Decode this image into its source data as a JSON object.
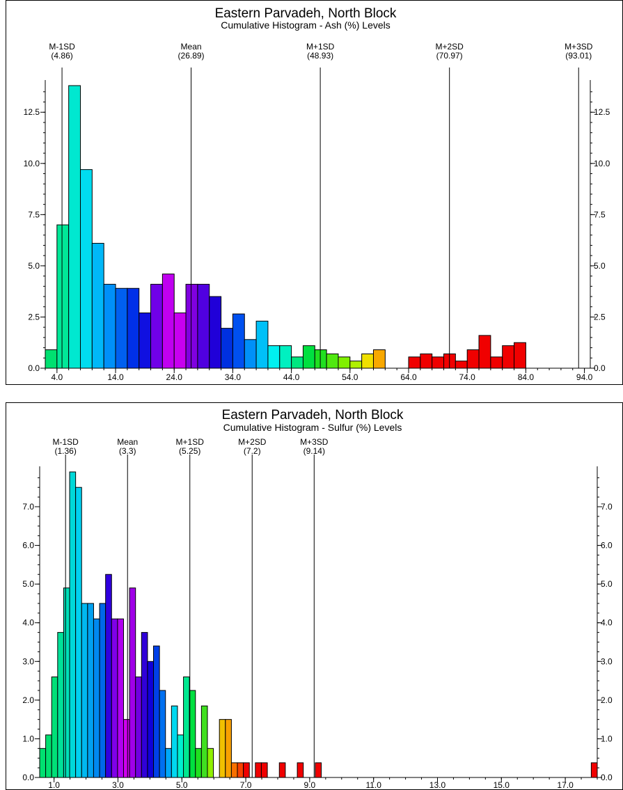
{
  "chart_data": [
    {
      "type": "bar",
      "title": "Eastern Parvadeh, North Block",
      "subtitle": "Cumulative Histogram - Ash (%) Levels",
      "xlabel": "",
      "ylabel": "",
      "xlim": [
        2.0,
        95.0
      ],
      "ylim": [
        0,
        13.8
      ],
      "xticks": [
        "4.0",
        "14.0",
        "24.0",
        "34.0",
        "44.0",
        "54.0",
        "64.0",
        "74.0",
        "84.0",
        "94.0"
      ],
      "yticks": [
        "0.0",
        "2.5",
        "5.0",
        "7.5",
        "10.0",
        "12.5"
      ],
      "grid": false,
      "bin_width": 2.0,
      "bins": [
        {
          "x0": 2.0,
          "value": 0.9,
          "color": "#00e070"
        },
        {
          "x0": 4.0,
          "value": 7.0,
          "color": "#00e898"
        },
        {
          "x0": 6.0,
          "value": 13.8,
          "color": "#00e8d0"
        },
        {
          "x0": 8.0,
          "value": 9.7,
          "color": "#00dcf0"
        },
        {
          "x0": 10.0,
          "value": 6.1,
          "color": "#00b8f8"
        },
        {
          "x0": 12.0,
          "value": 4.1,
          "color": "#0090f8"
        },
        {
          "x0": 14.0,
          "value": 3.9,
          "color": "#0060f0"
        },
        {
          "x0": 16.0,
          "value": 3.9,
          "color": "#0030e8"
        },
        {
          "x0": 18.0,
          "value": 2.7,
          "color": "#1010e0"
        },
        {
          "x0": 20.0,
          "value": 4.1,
          "color": "#7000e8"
        },
        {
          "x0": 22.0,
          "value": 4.6,
          "color": "#c000f0"
        },
        {
          "x0": 24.0,
          "value": 2.7,
          "color": "#c800f0"
        },
        {
          "x0": 26.0,
          "value": 4.1,
          "color": "#8000e0"
        },
        {
          "x0": 28.0,
          "value": 4.1,
          "color": "#5000e0"
        },
        {
          "x0": 30.0,
          "value": 3.5,
          "color": "#2000d8"
        },
        {
          "x0": 32.0,
          "value": 1.95,
          "color": "#0030e0"
        },
        {
          "x0": 34.0,
          "value": 2.65,
          "color": "#0050f0"
        },
        {
          "x0": 36.0,
          "value": 1.4,
          "color": "#0090f8"
        },
        {
          "x0": 38.0,
          "value": 2.3,
          "color": "#00c0f8"
        },
        {
          "x0": 40.0,
          "value": 1.1,
          "color": "#00f0f0"
        },
        {
          "x0": 42.0,
          "value": 1.1,
          "color": "#00f0c0"
        },
        {
          "x0": 44.0,
          "value": 0.55,
          "color": "#00e880"
        },
        {
          "x0": 46.0,
          "value": 1.1,
          "color": "#00e040"
        },
        {
          "x0": 48.0,
          "value": 0.9,
          "color": "#20e020"
        },
        {
          "x0": 50.0,
          "value": 0.7,
          "color": "#50e810"
        },
        {
          "x0": 52.0,
          "value": 0.55,
          "color": "#80f000"
        },
        {
          "x0": 54.0,
          "value": 0.35,
          "color": "#b0f000"
        },
        {
          "x0": 56.0,
          "value": 0.7,
          "color": "#f0e000"
        },
        {
          "x0": 58.0,
          "value": 0.9,
          "color": "#f8a800"
        },
        {
          "x0": 64.0,
          "value": 0.55,
          "color": "#f00000"
        },
        {
          "x0": 66.0,
          "value": 0.7,
          "color": "#f00000"
        },
        {
          "x0": 68.0,
          "value": 0.55,
          "color": "#f00000"
        },
        {
          "x0": 70.0,
          "value": 0.7,
          "color": "#f00000"
        },
        {
          "x0": 72.0,
          "value": 0.35,
          "color": "#f00000"
        },
        {
          "x0": 74.0,
          "value": 0.9,
          "color": "#f00000"
        },
        {
          "x0": 76.0,
          "value": 1.6,
          "color": "#f00000"
        },
        {
          "x0": 78.0,
          "value": 0.55,
          "color": "#f00000"
        },
        {
          "x0": 80.0,
          "value": 1.1,
          "color": "#f00000"
        },
        {
          "x0": 82.0,
          "value": 1.25,
          "color": "#f00000"
        }
      ],
      "reference_lines": [
        {
          "name": "M-1SD",
          "label": "(4.86)",
          "x": 4.86
        },
        {
          "name": "Mean",
          "label": "(26.89)",
          "x": 26.89
        },
        {
          "name": "M+1SD",
          "label": "(48.93)",
          "x": 48.93
        },
        {
          "name": "M+2SD",
          "label": "(70.97)",
          "x": 70.97
        },
        {
          "name": "M+3SD",
          "label": "(93.01)",
          "x": 93.01
        }
      ]
    },
    {
      "type": "bar",
      "title": "Eastern Parvadeh, North Block",
      "subtitle": "Cumulative Histogram - Sulfur (%) Levels",
      "xlabel": "",
      "ylabel": "",
      "xlim": [
        0.55,
        18.0
      ],
      "ylim": [
        0,
        7.9
      ],
      "xticks": [
        "1.0",
        "3.0",
        "5.0",
        "7.0",
        "9.0",
        "11.0",
        "13.0",
        "15.0",
        "17.0"
      ],
      "yticks": [
        "0.0",
        "1.0",
        "2.0",
        "3.0",
        "4.0",
        "5.0",
        "6.0",
        "7.0"
      ],
      "grid": false,
      "bin_width": 0.1875,
      "bins": [
        {
          "x0": 0.55,
          "value": 0.75,
          "color": "#00e070"
        },
        {
          "x0": 0.7375,
          "value": 1.1,
          "color": "#00e070"
        },
        {
          "x0": 0.925,
          "value": 2.6,
          "color": "#00e078"
        },
        {
          "x0": 1.1125,
          "value": 3.75,
          "color": "#00e098"
        },
        {
          "x0": 1.3,
          "value": 4.9,
          "color": "#00e0b8"
        },
        {
          "x0": 1.4875,
          "value": 7.9,
          "color": "#00d8d8"
        },
        {
          "x0": 1.675,
          "value": 7.5,
          "color": "#00d0f0"
        },
        {
          "x0": 1.8625,
          "value": 4.5,
          "color": "#00b8f0"
        },
        {
          "x0": 2.05,
          "value": 4.5,
          "color": "#00a0f0"
        },
        {
          "x0": 2.2375,
          "value": 4.1,
          "color": "#0088f0"
        },
        {
          "x0": 2.425,
          "value": 4.5,
          "color": "#0068e8"
        },
        {
          "x0": 2.6125,
          "value": 5.25,
          "color": "#3000e0"
        },
        {
          "x0": 2.8,
          "value": 4.1,
          "color": "#8000e8"
        },
        {
          "x0": 2.9875,
          "value": 4.1,
          "color": "#b000f0"
        },
        {
          "x0": 3.175,
          "value": 1.5,
          "color": "#d000f0"
        },
        {
          "x0": 3.3625,
          "value": 4.9,
          "color": "#a000e8"
        },
        {
          "x0": 3.55,
          "value": 2.6,
          "color": "#7000e0"
        },
        {
          "x0": 3.7375,
          "value": 3.75,
          "color": "#3000d8"
        },
        {
          "x0": 3.925,
          "value": 3.0,
          "color": "#1000d8"
        },
        {
          "x0": 4.1125,
          "value": 3.4,
          "color": "#0040e8"
        },
        {
          "x0": 4.3,
          "value": 2.25,
          "color": "#0070f0"
        },
        {
          "x0": 4.4875,
          "value": 0.75,
          "color": "#00a8f8"
        },
        {
          "x0": 4.675,
          "value": 1.85,
          "color": "#00d8f0"
        },
        {
          "x0": 4.8625,
          "value": 1.1,
          "color": "#00f0d0"
        },
        {
          "x0": 5.05,
          "value": 2.6,
          "color": "#00e890"
        },
        {
          "x0": 5.2375,
          "value": 2.25,
          "color": "#00e040"
        },
        {
          "x0": 5.425,
          "value": 0.75,
          "color": "#20e020"
        },
        {
          "x0": 5.6125,
          "value": 1.85,
          "color": "#40e020"
        },
        {
          "x0": 5.8,
          "value": 0.75,
          "color": "#90f000"
        },
        {
          "x0": 6.175,
          "value": 1.5,
          "color": "#f0c000"
        },
        {
          "x0": 6.3625,
          "value": 1.5,
          "color": "#f8a000"
        },
        {
          "x0": 6.55,
          "value": 0.38,
          "color": "#f87000"
        },
        {
          "x0": 6.7375,
          "value": 0.38,
          "color": "#f84000"
        },
        {
          "x0": 6.925,
          "value": 0.38,
          "color": "#f00000"
        },
        {
          "x0": 7.3,
          "value": 0.38,
          "color": "#f00000"
        },
        {
          "x0": 7.4875,
          "value": 0.38,
          "color": "#f00000"
        },
        {
          "x0": 8.05,
          "value": 0.38,
          "color": "#f00000"
        },
        {
          "x0": 8.6125,
          "value": 0.38,
          "color": "#f00000"
        },
        {
          "x0": 9.175,
          "value": 0.38,
          "color": "#f00000"
        },
        {
          "x0": 17.8125,
          "value": 0.38,
          "color": "#f00000"
        }
      ],
      "reference_lines": [
        {
          "name": "M-1SD",
          "label": "(1.36)",
          "x": 1.36
        },
        {
          "name": "Mean",
          "label": "(3.3)",
          "x": 3.3
        },
        {
          "name": "M+1SD",
          "label": "(5.25)",
          "x": 5.25
        },
        {
          "name": "M+2SD",
          "label": "(7.2)",
          "x": 7.2
        },
        {
          "name": "M+3SD",
          "label": "(9.14)",
          "x": 9.14
        }
      ]
    }
  ]
}
